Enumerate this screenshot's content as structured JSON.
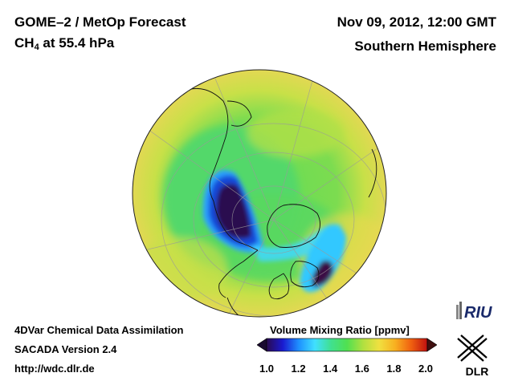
{
  "header": {
    "title_line1": "GOME–2 / MetOp Forecast",
    "species": "CH",
    "species_sub": "4",
    "species_rest": " at 55.4 hPa",
    "datetime": "Nov 09, 2012, 12:00 GMT",
    "region": "Southern Hemisphere"
  },
  "footer": {
    "line1": "4DVar Chemical Data Assimilation",
    "line2": "SACADA Version 2.4",
    "line3": "http://wdc.dlr.de"
  },
  "colorbar": {
    "title": "Volume Mixing Ratio [ppmv]",
    "ticks": [
      "1.0",
      "1.2",
      "1.4",
      "1.6",
      "1.8",
      "2.0"
    ],
    "min": 1.0,
    "max": 2.0,
    "colors": [
      "#2a0a50",
      "#1a1ad0",
      "#1e90ff",
      "#40e0ff",
      "#40e090",
      "#50e050",
      "#b0e040",
      "#f0e040",
      "#f8b020",
      "#f06010",
      "#c01010",
      "#601010"
    ]
  },
  "logos": {
    "riu": "RIU",
    "dlr": "DLR"
  },
  "map": {
    "projection": "orthographic",
    "background_colors": {
      "high": "#f3d35a",
      "mid": "#5bdc5b",
      "low": "#1e90ff",
      "min": "#3a0a45"
    }
  }
}
